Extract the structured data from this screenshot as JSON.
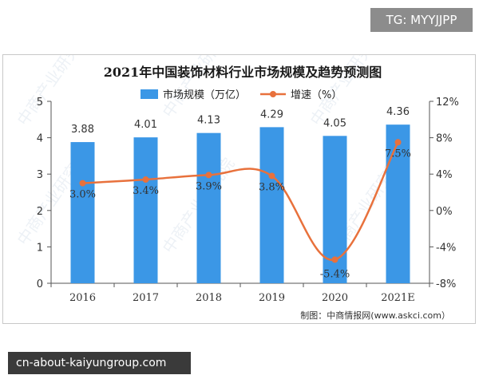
{
  "badges": {
    "top_right": "TG: MYYJJPP",
    "bottom_left": "cn-about-kaiyungroup.com"
  },
  "chart_data": {
    "type": "bar",
    "title": "2021年中国装饰材料行业市场规模及趋势预测图",
    "categories": [
      "2016",
      "2017",
      "2018",
      "2019",
      "2020",
      "2021E"
    ],
    "series": [
      {
        "name": "市场规模（万亿）",
        "type": "bar",
        "axis": "left",
        "values": [
          3.88,
          4.01,
          4.13,
          4.29,
          4.05,
          4.36
        ],
        "labels": [
          "3.88",
          "4.01",
          "4.13",
          "4.29",
          "4.05",
          "4.36"
        ],
        "color": "#3b97e6"
      },
      {
        "name": "增速（%）",
        "type": "line",
        "axis": "right",
        "values": [
          3.0,
          3.4,
          3.9,
          3.8,
          -5.4,
          7.5
        ],
        "labels": [
          "3.0%",
          "3.4%",
          "3.9%",
          "3.8%",
          "-5.4%",
          "7.5%"
        ],
        "color": "#e8713c"
      }
    ],
    "y_left": {
      "min": 0,
      "max": 5,
      "ticks": [
        "0",
        "1",
        "2",
        "3",
        "4",
        "5"
      ]
    },
    "y_right": {
      "min": -8,
      "max": 12,
      "ticks": [
        "-8%",
        "-4%",
        "0%",
        "4%",
        "8%",
        "12%"
      ]
    },
    "legend_position": "top-center",
    "grid": false
  },
  "source": "制图：中商情报网(www.askci.com）",
  "watermark": "中商产业研究院"
}
